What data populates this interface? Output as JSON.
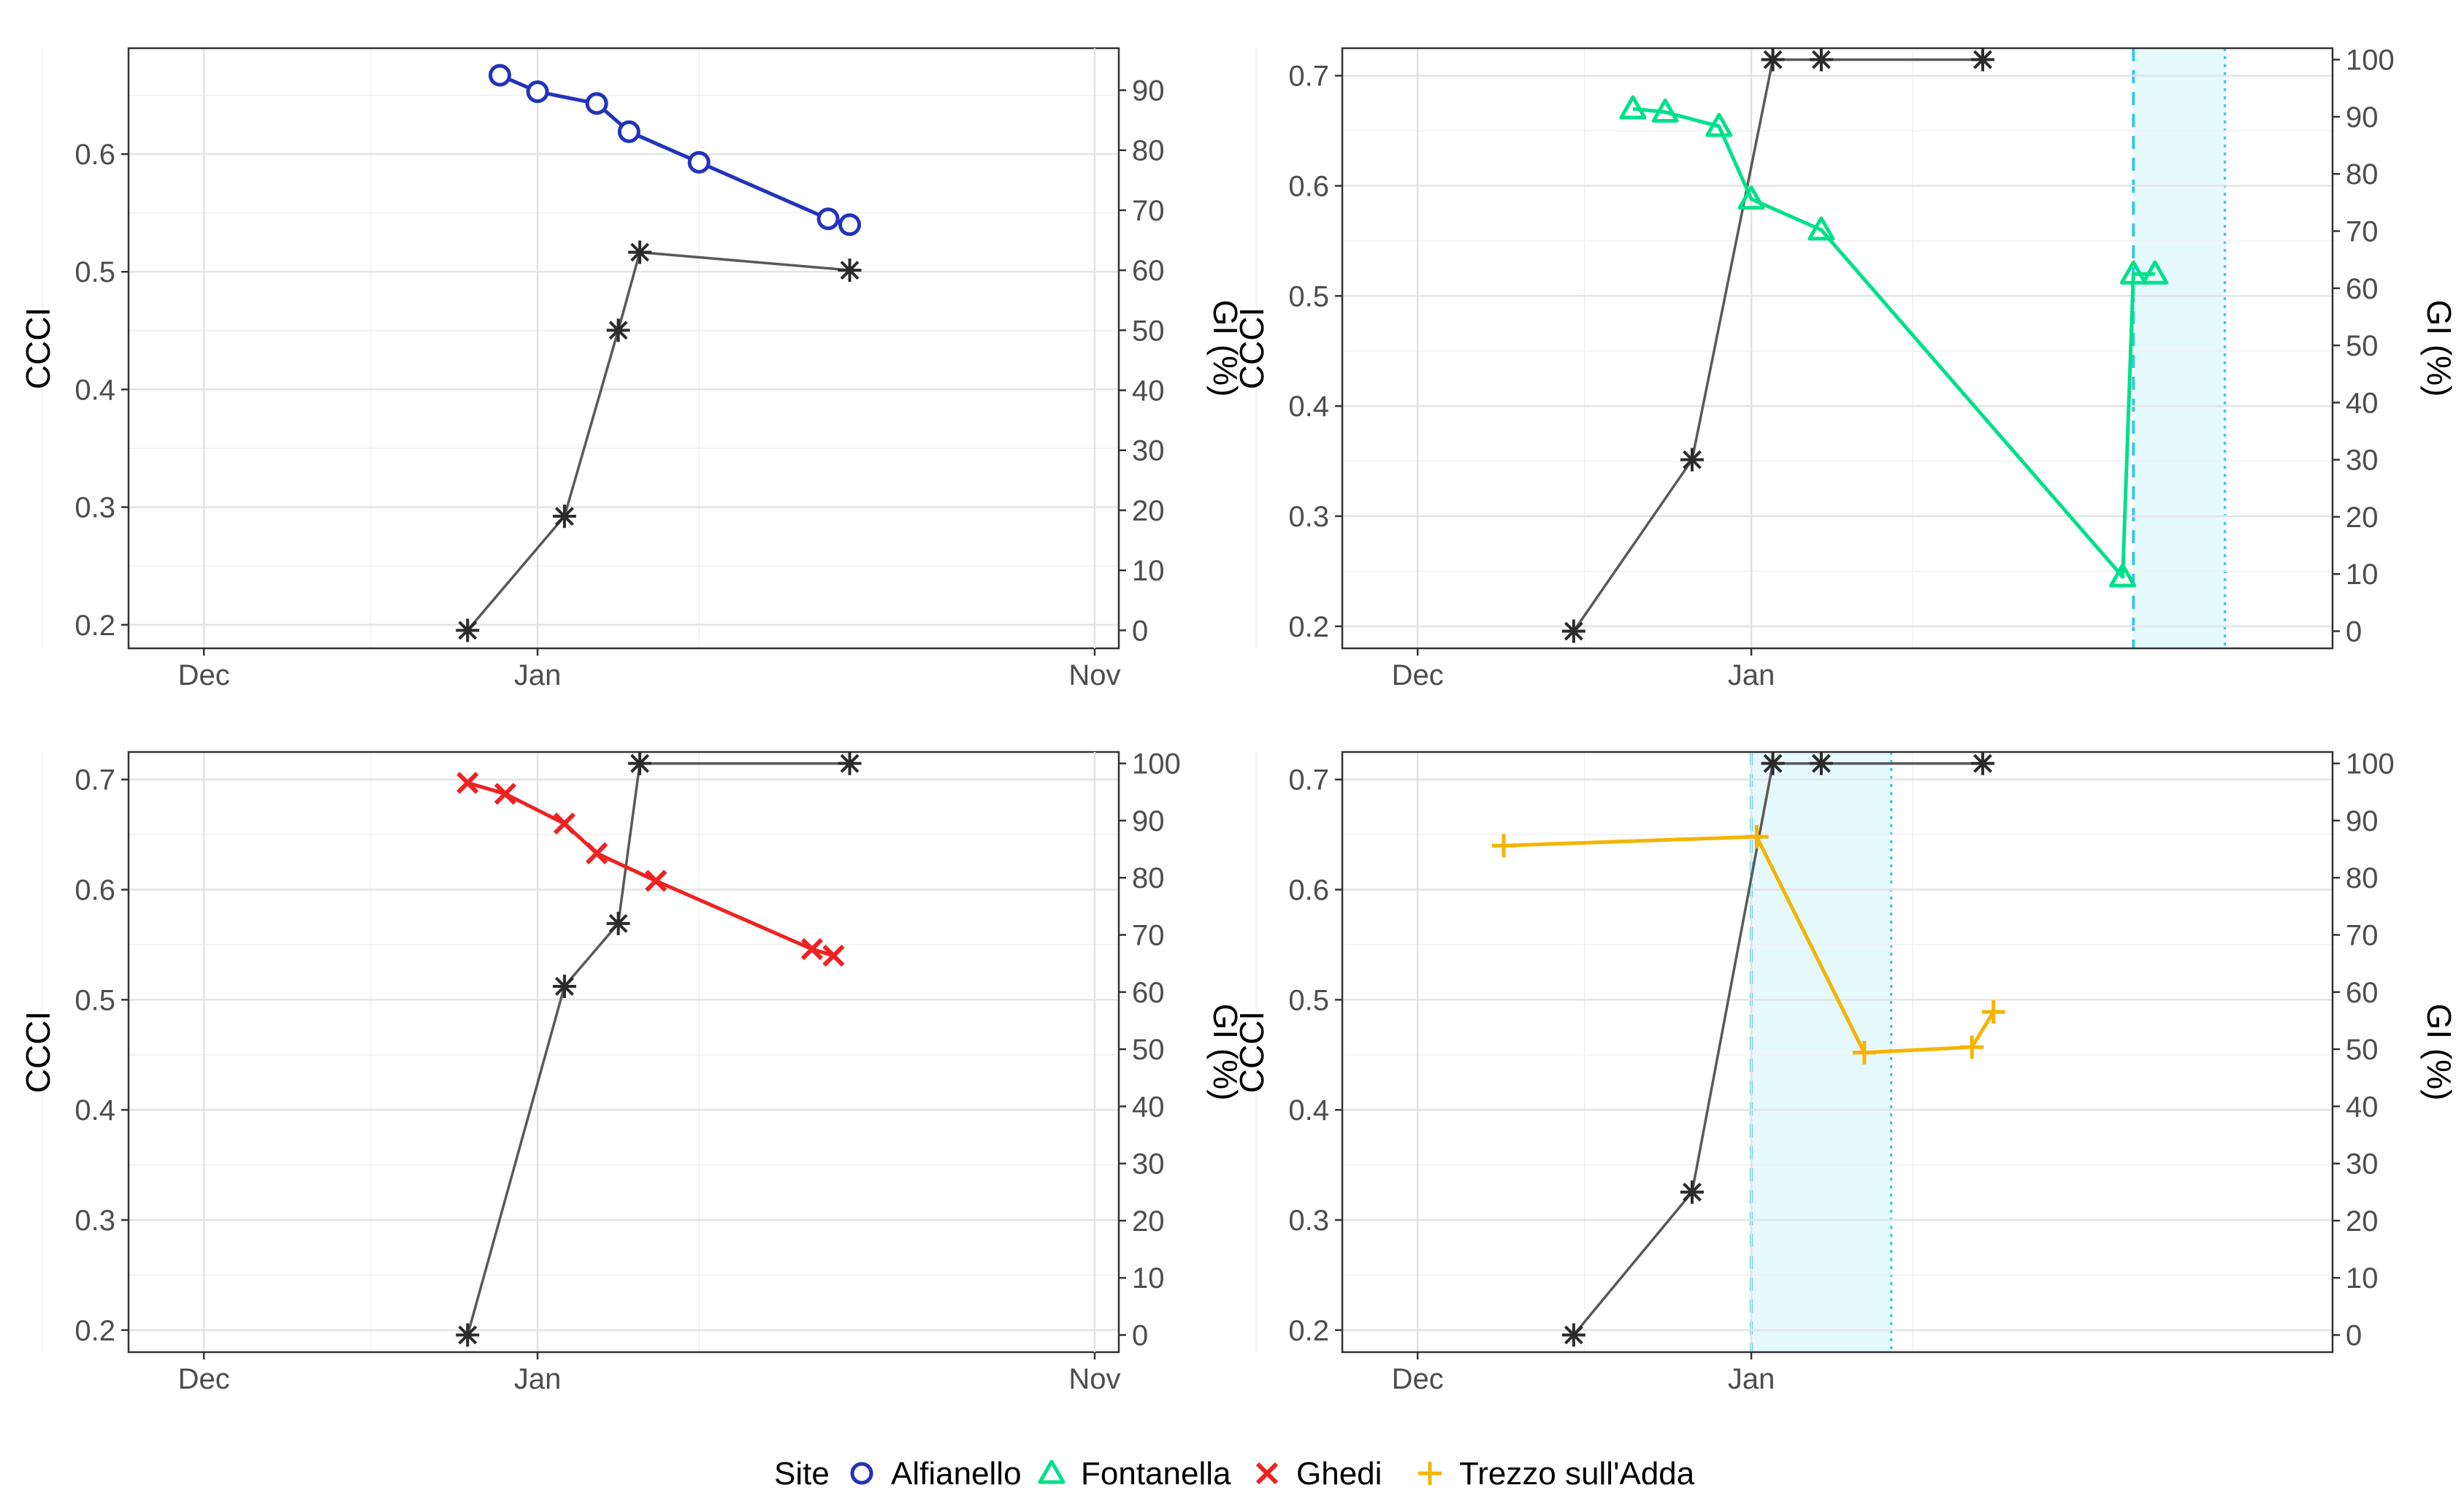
{
  "chart_data": [
    {
      "type": "line",
      "panel": "top-left",
      "site": "Alfianello",
      "xlabel": "",
      "ylabel": "CCCI",
      "y2label": "GI (%)",
      "x_tick_labels": [
        "Nov",
        "Dec",
        "Jan"
      ],
      "x_range": [
        "Oct 27",
        "Feb 2"
      ],
      "ylim": [
        0.18,
        0.69
      ],
      "y_ticks": [
        0.2,
        0.3,
        0.4,
        0.5,
        0.6
      ],
      "y_tick_labels": [
        "0.2",
        "0.3",
        "0.4",
        "0.5",
        "0.6"
      ],
      "y2lim": [
        -3,
        97
      ],
      "y2_ticks": [
        0,
        10,
        20,
        30,
        40,
        50,
        60,
        70,
        80,
        90
      ],
      "y2_tick_labels": [
        "0",
        "10",
        "20",
        "30",
        "40",
        "50",
        "60",
        "70",
        "80",
        "90"
      ],
      "shaded_period": null,
      "series": [
        {
          "name": "CCCI",
          "axis": "left",
          "color": "#2233bb",
          "marker": "circle",
          "x": [
            27.5,
            31,
            36.5,
            39.5,
            46,
            58,
            60
          ],
          "values": [
            0.667,
            0.653,
            0.643,
            0.619,
            0.593,
            0.545,
            0.54
          ]
        },
        {
          "name": "GI (%)",
          "axis": "right",
          "color": "#595959",
          "marker": "asterisk",
          "x": [
            24.5,
            33.5,
            38.5,
            40.5,
            60
          ],
          "values": [
            0,
            19,
            50,
            63,
            60
          ]
        }
      ]
    },
    {
      "type": "line",
      "panel": "top-right",
      "site": "Fontanella",
      "xlabel": "",
      "ylabel": "CCCI",
      "y2label": "GI (%)",
      "x_tick_labels": [
        "Nov",
        "Dec",
        "Jan"
      ],
      "x_range": [
        "Oct 27",
        "Feb 2"
      ],
      "ylim": [
        0.18,
        0.725
      ],
      "y_ticks": [
        0.2,
        0.3,
        0.4,
        0.5,
        0.6,
        0.7
      ],
      "y_tick_labels": [
        "0.2",
        "0.3",
        "0.4",
        "0.5",
        "0.6",
        "0.7"
      ],
      "y2lim": [
        -3,
        102
      ],
      "y2_ticks": [
        0,
        10,
        20,
        30,
        40,
        50,
        60,
        70,
        80,
        90,
        100
      ],
      "y2_tick_labels": [
        "0",
        "10",
        "20",
        "30",
        "40",
        "50",
        "60",
        "70",
        "80",
        "90",
        "100"
      ],
      "shaded_period": {
        "start": 66.5,
        "end": 75,
        "color": "#35c8e6"
      },
      "series": [
        {
          "name": "CCCI",
          "axis": "left",
          "color": "#00e08a",
          "marker": "triangle",
          "x": [
            20,
            23,
            28,
            31,
            37.5,
            65.5,
            66.5,
            68.5
          ],
          "values": [
            0.67,
            0.667,
            0.654,
            0.588,
            0.56,
            0.245,
            0.52,
            0.52
          ]
        },
        {
          "name": "GI (%)",
          "axis": "right",
          "color": "#595959",
          "marker": "asterisk",
          "x": [
            14.5,
            25.5,
            33,
            37.5,
            52.5
          ],
          "values": [
            0,
            30,
            100,
            100,
            100
          ]
        }
      ]
    },
    {
      "type": "line",
      "panel": "bottom-left",
      "site": "Ghedi",
      "xlabel": "",
      "ylabel": "CCCI",
      "y2label": "GI (%)",
      "x_tick_labels": [
        "Nov",
        "Dec",
        "Jan"
      ],
      "x_range": [
        "Oct 27",
        "Feb 2"
      ],
      "ylim": [
        0.18,
        0.725
      ],
      "y_ticks": [
        0.2,
        0.3,
        0.4,
        0.5,
        0.6,
        0.7
      ],
      "y_tick_labels": [
        "0.2",
        "0.3",
        "0.4",
        "0.5",
        "0.6",
        "0.7"
      ],
      "y2lim": [
        -3,
        102
      ],
      "y2_ticks": [
        0,
        10,
        20,
        30,
        40,
        50,
        60,
        70,
        80,
        90,
        100
      ],
      "y2_tick_labels": [
        "0",
        "10",
        "20",
        "30",
        "40",
        "50",
        "60",
        "70",
        "80",
        "90",
        "100"
      ],
      "shaded_period": null,
      "series": [
        {
          "name": "CCCI",
          "axis": "left",
          "color": "#ee2222",
          "marker": "x",
          "x": [
            24.5,
            28,
            33.5,
            36.5,
            42,
            56.5,
            58.5
          ],
          "values": [
            0.697,
            0.687,
            0.66,
            0.633,
            0.608,
            0.546,
            0.54
          ]
        },
        {
          "name": "GI (%)",
          "axis": "right",
          "color": "#595959",
          "marker": "asterisk",
          "x": [
            24.5,
            33.5,
            38.5,
            40.5,
            60
          ],
          "values": [
            0,
            61,
            72,
            100,
            100
          ]
        }
      ]
    },
    {
      "type": "line",
      "panel": "bottom-right",
      "site": "Trezzo sull'Adda",
      "xlabel": "",
      "ylabel": "CCCI",
      "y2label": "GI (%)",
      "x_tick_labels": [
        "Nov",
        "Dec",
        "Jan"
      ],
      "x_range": [
        "Oct 27",
        "Feb 2"
      ],
      "ylim": [
        0.18,
        0.725
      ],
      "y_ticks": [
        0.2,
        0.3,
        0.4,
        0.5,
        0.6,
        0.7
      ],
      "y_tick_labels": [
        "0.2",
        "0.3",
        "0.4",
        "0.5",
        "0.6",
        "0.7"
      ],
      "y2lim": [
        -3,
        102
      ],
      "y2_ticks": [
        0,
        10,
        20,
        30,
        40,
        50,
        60,
        70,
        80,
        90,
        100
      ],
      "y2_tick_labels": [
        "0",
        "10",
        "20",
        "30",
        "40",
        "50",
        "60",
        "70",
        "80",
        "90",
        "100"
      ],
      "shaded_period": {
        "start": 31,
        "end": 44,
        "color": "#35c8e6"
      },
      "series": [
        {
          "name": "CCCI",
          "axis": "left",
          "color": "#f4b400",
          "marker": "plus",
          "x": [
            8,
            31.5,
            41.5,
            51.5,
            53.5
          ],
          "values": [
            0.64,
            0.648,
            0.452,
            0.457,
            0.489
          ]
        },
        {
          "name": "GI (%)",
          "axis": "right",
          "color": "#595959",
          "marker": "asterisk",
          "x": [
            14.5,
            25.5,
            33,
            37.5,
            52.5
          ],
          "values": [
            0,
            25,
            100,
            100,
            100
          ]
        }
      ]
    }
  ],
  "legend": {
    "title": "Site",
    "position": "bottom",
    "entries": [
      {
        "label": "Alfianello",
        "marker": "circle",
        "color": "#2233bb"
      },
      {
        "label": "Fontanella",
        "marker": "triangle",
        "color": "#00e08a"
      },
      {
        "label": "Ghedi",
        "marker": "x",
        "color": "#ee2222"
      },
      {
        "label": "Trezzo sull'Adda",
        "marker": "plus",
        "color": "#f4b400"
      }
    ]
  }
}
